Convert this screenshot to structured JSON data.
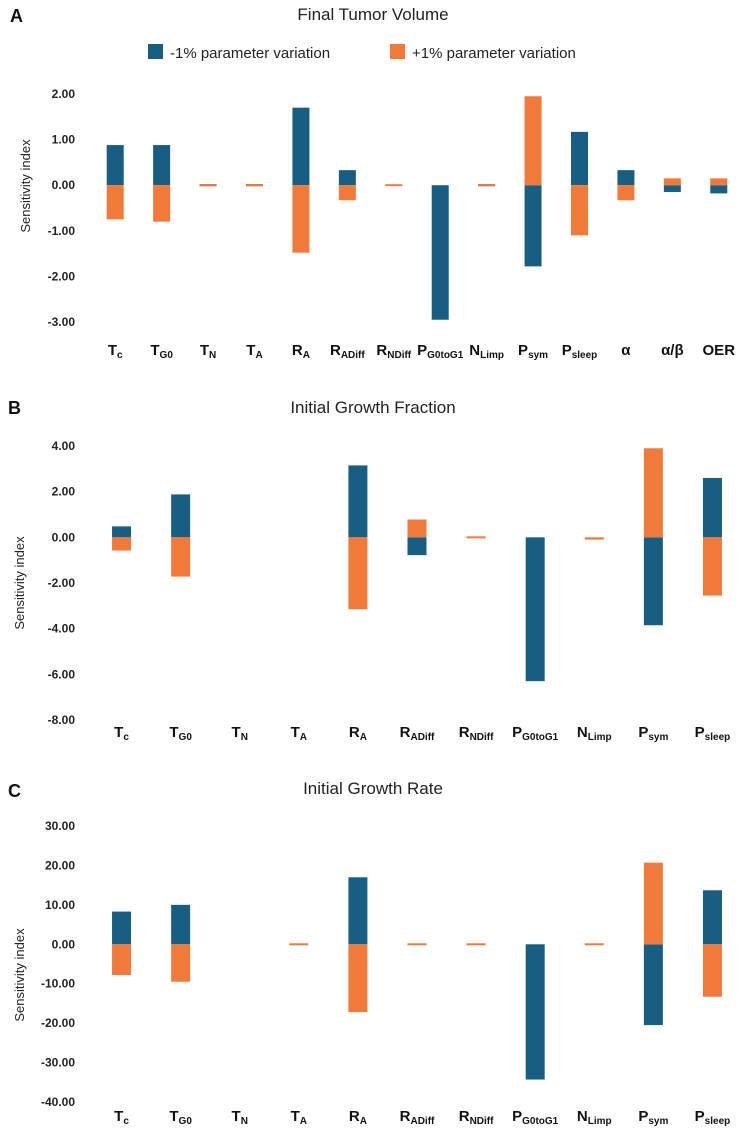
{
  "colors": {
    "minus": "#175e82",
    "plus": "#ef7a3a"
  },
  "legend": {
    "minus_label": "-1% parameter variation",
    "plus_label": "+1% parameter variation"
  },
  "chart_data": [
    {
      "type": "bar",
      "panel": "A",
      "title": "Final Tumor Volume",
      "ylabel": "Sensitivity index",
      "ylim": [
        -3,
        2
      ],
      "yticks": [
        2,
        1,
        0,
        -1,
        -2,
        -3
      ],
      "ytick_labels": [
        "2.00",
        "1.00",
        "0.00",
        "-1.00",
        "-2.00",
        "-3.00"
      ],
      "categories": [
        {
          "base": "T",
          "sub": "c"
        },
        {
          "base": "T",
          "sub": "G0"
        },
        {
          "base": "T",
          "sub": "N"
        },
        {
          "base": "T",
          "sub": "A"
        },
        {
          "base": "R",
          "sub": "A"
        },
        {
          "base": "R",
          "sub": "ADiff"
        },
        {
          "base": "R",
          "sub": "NDiff"
        },
        {
          "base": "P",
          "sub": "G0toG1"
        },
        {
          "base": "N",
          "sub": "Limp"
        },
        {
          "base": "P",
          "sub": "sym"
        },
        {
          "base": "P",
          "sub": "sleep"
        },
        {
          "base": "α",
          "sub": ""
        },
        {
          "base": "α/β",
          "sub": ""
        },
        {
          "base": "OER",
          "sub": ""
        }
      ],
      "series": [
        {
          "name": "-1% parameter variation",
          "values": [
            0.88,
            0.88,
            -0.02,
            0.02,
            1.7,
            0.33,
            0.0,
            -2.95,
            0.02,
            -1.78,
            1.17,
            0.33,
            -0.15,
            -0.18
          ]
        },
        {
          "name": "+1% parameter variation",
          "values": [
            -0.75,
            -0.8,
            0.02,
            -0.02,
            -1.48,
            -0.33,
            -0.01,
            0.0,
            -0.02,
            1.95,
            -1.1,
            -0.33,
            0.15,
            0.15
          ]
        }
      ]
    },
    {
      "type": "bar",
      "panel": "B",
      "title": "Initial Growth Fraction",
      "ylabel": "Sensitivity index",
      "ylim": [
        -8,
        4
      ],
      "yticks": [
        4,
        2,
        0,
        -2,
        -4,
        -6,
        -8
      ],
      "ytick_labels": [
        "4.00",
        "2.00",
        "0.00",
        "-2.00",
        "-4.00",
        "-6.00",
        "-8.00"
      ],
      "categories": [
        {
          "base": "T",
          "sub": "c"
        },
        {
          "base": "T",
          "sub": "G0"
        },
        {
          "base": "T",
          "sub": "N"
        },
        {
          "base": "T",
          "sub": "A"
        },
        {
          "base": "R",
          "sub": "A"
        },
        {
          "base": "R",
          "sub": "ADiff"
        },
        {
          "base": "R",
          "sub": "NDiff"
        },
        {
          "base": "P",
          "sub": "G0toG1"
        },
        {
          "base": "N",
          "sub": "Limp"
        },
        {
          "base": "P",
          "sub": "sym"
        },
        {
          "base": "P",
          "sub": "sleep"
        }
      ],
      "series": [
        {
          "name": "-1% parameter variation",
          "values": [
            0.48,
            1.88,
            0.0,
            0.0,
            3.15,
            -0.78,
            0.0,
            -6.3,
            0.0,
            -3.85,
            2.6
          ]
        },
        {
          "name": "+1% parameter variation",
          "values": [
            -0.58,
            -1.72,
            0.0,
            0.0,
            -3.15,
            0.78,
            -0.04,
            0.0,
            -0.1,
            3.9,
            -2.55
          ]
        }
      ]
    },
    {
      "type": "bar",
      "panel": "C",
      "title": "Initial Growth Rate",
      "ylabel": "Sensitivity index",
      "ylim": [
        -40,
        30
      ],
      "yticks": [
        30,
        20,
        10,
        0,
        -10,
        -20,
        -30,
        -40
      ],
      "ytick_labels": [
        "30.00",
        "20.00",
        "10.00",
        "0.00",
        "-10.00",
        "-20.00",
        "-30.00",
        "-40.00"
      ],
      "categories": [
        {
          "base": "T",
          "sub": "c"
        },
        {
          "base": "T",
          "sub": "G0"
        },
        {
          "base": "T",
          "sub": "N"
        },
        {
          "base": "T",
          "sub": "A"
        },
        {
          "base": "R",
          "sub": "A"
        },
        {
          "base": "R",
          "sub": "ADiff"
        },
        {
          "base": "R",
          "sub": "NDiff"
        },
        {
          "base": "P",
          "sub": "G0toG1"
        },
        {
          "base": "N",
          "sub": "Limp"
        },
        {
          "base": "P",
          "sub": "sym"
        },
        {
          "base": "P",
          "sub": "sleep"
        }
      ],
      "series": [
        {
          "name": "-1% parameter variation",
          "values": [
            8.3,
            10.0,
            0.0,
            0.0,
            17.0,
            0.0,
            0.0,
            -34.3,
            0.0,
            -20.5,
            13.7
          ]
        },
        {
          "name": "+1% parameter variation",
          "values": [
            -7.8,
            -9.5,
            0.0,
            -0.4,
            -17.2,
            -0.4,
            -0.4,
            0.0,
            0.4,
            20.7,
            -13.3
          ]
        }
      ]
    }
  ]
}
